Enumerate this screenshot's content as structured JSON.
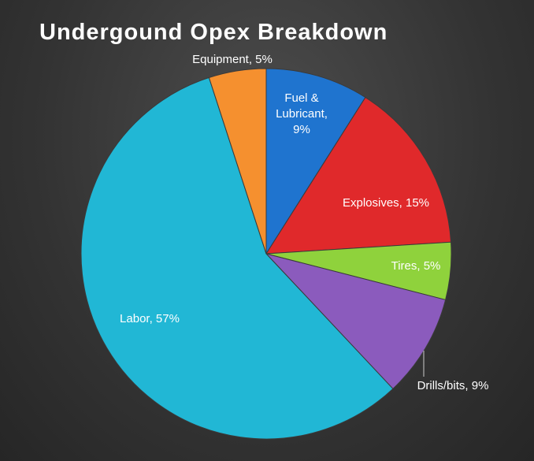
{
  "chart_data": {
    "type": "pie",
    "title": "Undergound Opex Breakdown",
    "values": [
      9,
      15,
      5,
      9,
      57,
      5
    ],
    "value_labels": [
      "Fuel & Lubricant, 9%",
      "Explosives, 15%",
      "Tires, 5%",
      "Drills/bits, 9%",
      "Labor, 57%",
      "Equipment, 5%"
    ],
    "colors": [
      "#1f74cf",
      "#e0292b",
      "#8fd23c",
      "#8b5bbd",
      "#21b7d5",
      "#f5902f"
    ]
  }
}
